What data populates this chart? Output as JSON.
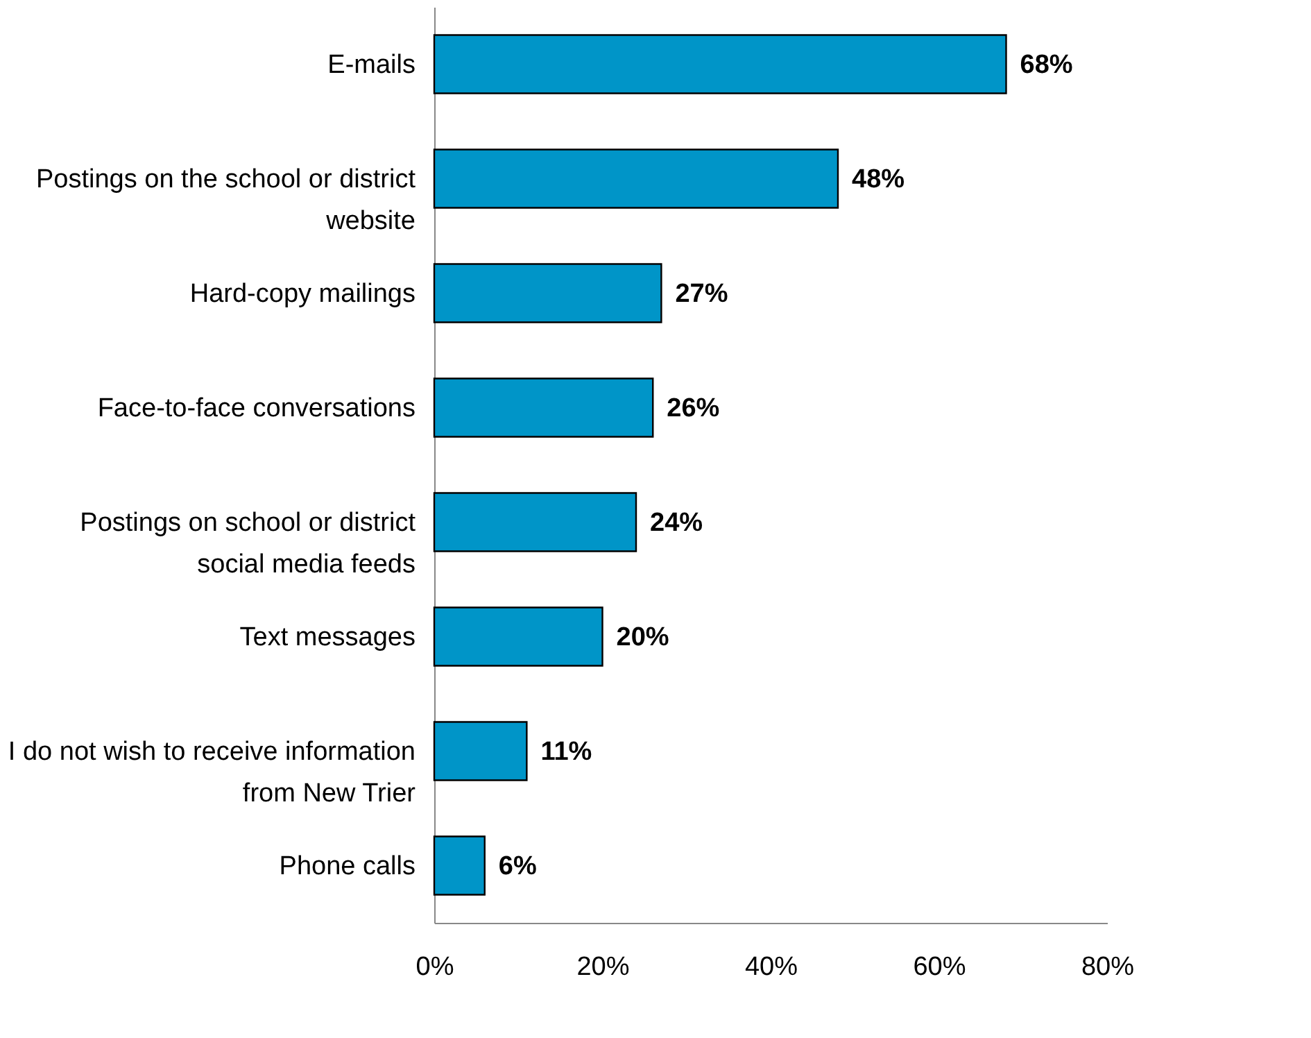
{
  "chart_data": {
    "type": "bar",
    "orientation": "horizontal",
    "categories": [
      "E-mails",
      "Postings on the school or district website",
      "Hard-copy mailings",
      "Face-to-face conversations",
      "Postings on school or district social media feeds",
      "Text messages",
      "I do not wish to receive information from New Trier",
      "Phone calls"
    ],
    "values": [
      68,
      48,
      27,
      26,
      24,
      20,
      11,
      6
    ],
    "value_labels": [
      "68%",
      "48%",
      "27%",
      "26%",
      "24%",
      "20%",
      "11%",
      "6%"
    ],
    "color": "#0095c8",
    "xlim": [
      0,
      80
    ],
    "xticks": [
      {
        "value": 0,
        "label": "0%"
      },
      {
        "value": 20,
        "label": "20%"
      },
      {
        "value": 40,
        "label": "40%"
      },
      {
        "value": 60,
        "label": "60%"
      },
      {
        "value": 80,
        "label": "80%"
      }
    ],
    "grid": false
  }
}
